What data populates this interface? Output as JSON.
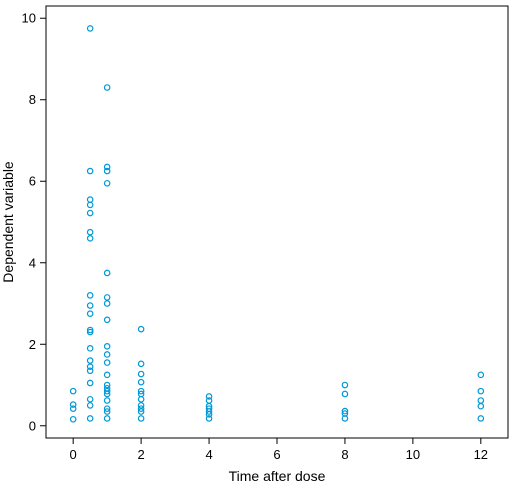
{
  "chart_data": {
    "type": "scatter",
    "xlabel": "Time after dose",
    "ylabel": "Dependent variable",
    "xlim": [
      -0.8,
      12.8
    ],
    "ylim": [
      -0.3,
      10.3
    ],
    "xticks": [
      0,
      2,
      4,
      6,
      8,
      10,
      12
    ],
    "yticks": [
      0,
      2,
      4,
      6,
      8,
      10
    ],
    "grid": false,
    "marker_color": "#0099d8",
    "series": [
      {
        "points": [
          {
            "x": 0,
            "y": 0.85
          },
          {
            "x": 0,
            "y": 0.52
          },
          {
            "x": 0,
            "y": 0.42
          },
          {
            "x": 0,
            "y": 0.16
          },
          {
            "x": 0.5,
            "y": 9.75
          },
          {
            "x": 0.5,
            "y": 6.25
          },
          {
            "x": 0.5,
            "y": 5.55
          },
          {
            "x": 0.5,
            "y": 5.42
          },
          {
            "x": 0.5,
            "y": 5.22
          },
          {
            "x": 0.5,
            "y": 4.75
          },
          {
            "x": 0.5,
            "y": 4.6
          },
          {
            "x": 0.5,
            "y": 3.2
          },
          {
            "x": 0.5,
            "y": 2.95
          },
          {
            "x": 0.5,
            "y": 2.75
          },
          {
            "x": 0.5,
            "y": 2.35
          },
          {
            "x": 0.5,
            "y": 2.3
          },
          {
            "x": 0.5,
            "y": 1.9
          },
          {
            "x": 0.5,
            "y": 1.6
          },
          {
            "x": 0.5,
            "y": 1.45
          },
          {
            "x": 0.5,
            "y": 1.35
          },
          {
            "x": 0.5,
            "y": 1.05
          },
          {
            "x": 0.5,
            "y": 0.65
          },
          {
            "x": 0.5,
            "y": 0.5
          },
          {
            "x": 0.5,
            "y": 0.18
          },
          {
            "x": 1,
            "y": 8.3
          },
          {
            "x": 1,
            "y": 6.35
          },
          {
            "x": 1,
            "y": 6.25
          },
          {
            "x": 1,
            "y": 5.95
          },
          {
            "x": 1,
            "y": 3.75
          },
          {
            "x": 1,
            "y": 3.15
          },
          {
            "x": 1,
            "y": 3.0
          },
          {
            "x": 1,
            "y": 2.6
          },
          {
            "x": 1,
            "y": 1.95
          },
          {
            "x": 1,
            "y": 1.75
          },
          {
            "x": 1,
            "y": 1.55
          },
          {
            "x": 1,
            "y": 1.25
          },
          {
            "x": 1,
            "y": 1.0
          },
          {
            "x": 1,
            "y": 0.92
          },
          {
            "x": 1,
            "y": 0.85
          },
          {
            "x": 1,
            "y": 0.78
          },
          {
            "x": 1,
            "y": 0.62
          },
          {
            "x": 1,
            "y": 0.42
          },
          {
            "x": 1,
            "y": 0.35
          },
          {
            "x": 1,
            "y": 0.18
          },
          {
            "x": 2,
            "y": 2.37
          },
          {
            "x": 2,
            "y": 1.52
          },
          {
            "x": 2,
            "y": 1.27
          },
          {
            "x": 2,
            "y": 1.07
          },
          {
            "x": 2,
            "y": 0.85
          },
          {
            "x": 2,
            "y": 0.78
          },
          {
            "x": 2,
            "y": 0.65
          },
          {
            "x": 2,
            "y": 0.5
          },
          {
            "x": 2,
            "y": 0.42
          },
          {
            "x": 2,
            "y": 0.35
          },
          {
            "x": 2,
            "y": 0.18
          },
          {
            "x": 4,
            "y": 0.72
          },
          {
            "x": 4,
            "y": 0.62
          },
          {
            "x": 4,
            "y": 0.48
          },
          {
            "x": 4,
            "y": 0.42
          },
          {
            "x": 4,
            "y": 0.35
          },
          {
            "x": 4,
            "y": 0.28
          },
          {
            "x": 4,
            "y": 0.18
          },
          {
            "x": 8,
            "y": 1.0
          },
          {
            "x": 8,
            "y": 0.78
          },
          {
            "x": 8,
            "y": 0.36
          },
          {
            "x": 8,
            "y": 0.3
          },
          {
            "x": 8,
            "y": 0.18
          },
          {
            "x": 12,
            "y": 1.25
          },
          {
            "x": 12,
            "y": 0.85
          },
          {
            "x": 12,
            "y": 0.62
          },
          {
            "x": 12,
            "y": 0.48
          },
          {
            "x": 12,
            "y": 0.18
          }
        ]
      }
    ]
  }
}
